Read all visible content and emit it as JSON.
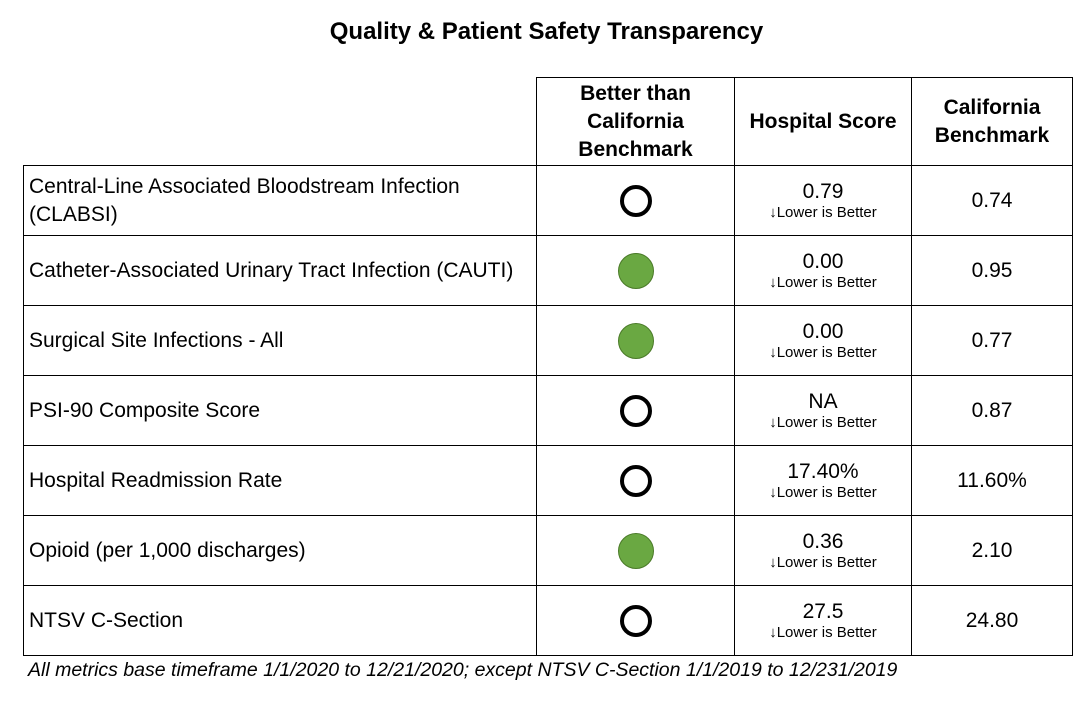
{
  "title": "Quality & Patient Safety Transparency",
  "colors": {
    "better_fill": "#6aa842",
    "not_better_fill": "#ffffff",
    "border": "#000000"
  },
  "headers": {
    "indicator": "Better than California Benchmark",
    "hospital_score": "Hospital Score",
    "benchmark": "California Benchmark"
  },
  "score_note": "↓Lower is Better",
  "rows": [
    {
      "metric": "Central-Line Associated Bloodstream Infection (CLABSI)",
      "better": false,
      "score": "0.79",
      "note": "↓Lower is Better",
      "benchmark": "0.74"
    },
    {
      "metric": "Catheter-Associated Urinary Tract Infection (CAUTI)",
      "better": true,
      "score": "0.00",
      "note": "↓Lower is Better",
      "benchmark": "0.95"
    },
    {
      "metric": "Surgical Site Infections - All",
      "better": true,
      "score": "0.00",
      "note": "↓Lower is Better",
      "benchmark": "0.77"
    },
    {
      "metric": "PSI-90 Composite Score",
      "better": false,
      "score": "NA",
      "note": "↓Lower is Better",
      "benchmark": "0.87"
    },
    {
      "metric": "Hospital Readmission Rate",
      "better": false,
      "score": "17.40%",
      "note": "↓Lower is Better",
      "benchmark": "11.60%"
    },
    {
      "metric": "Opioid (per 1,000 discharges)",
      "better": true,
      "score": "0.36",
      "note": "↓Lower is Better",
      "benchmark": "2.10"
    },
    {
      "metric": "NTSV C-Section",
      "better": false,
      "score": "27.5",
      "note": "↓Lower is Better",
      "benchmark": "24.80"
    }
  ],
  "footnote": "All metrics base timeframe 1/1/2020 to 12/21/2020; except NTSV C-Section 1/1/2019 to 12/231/2019"
}
